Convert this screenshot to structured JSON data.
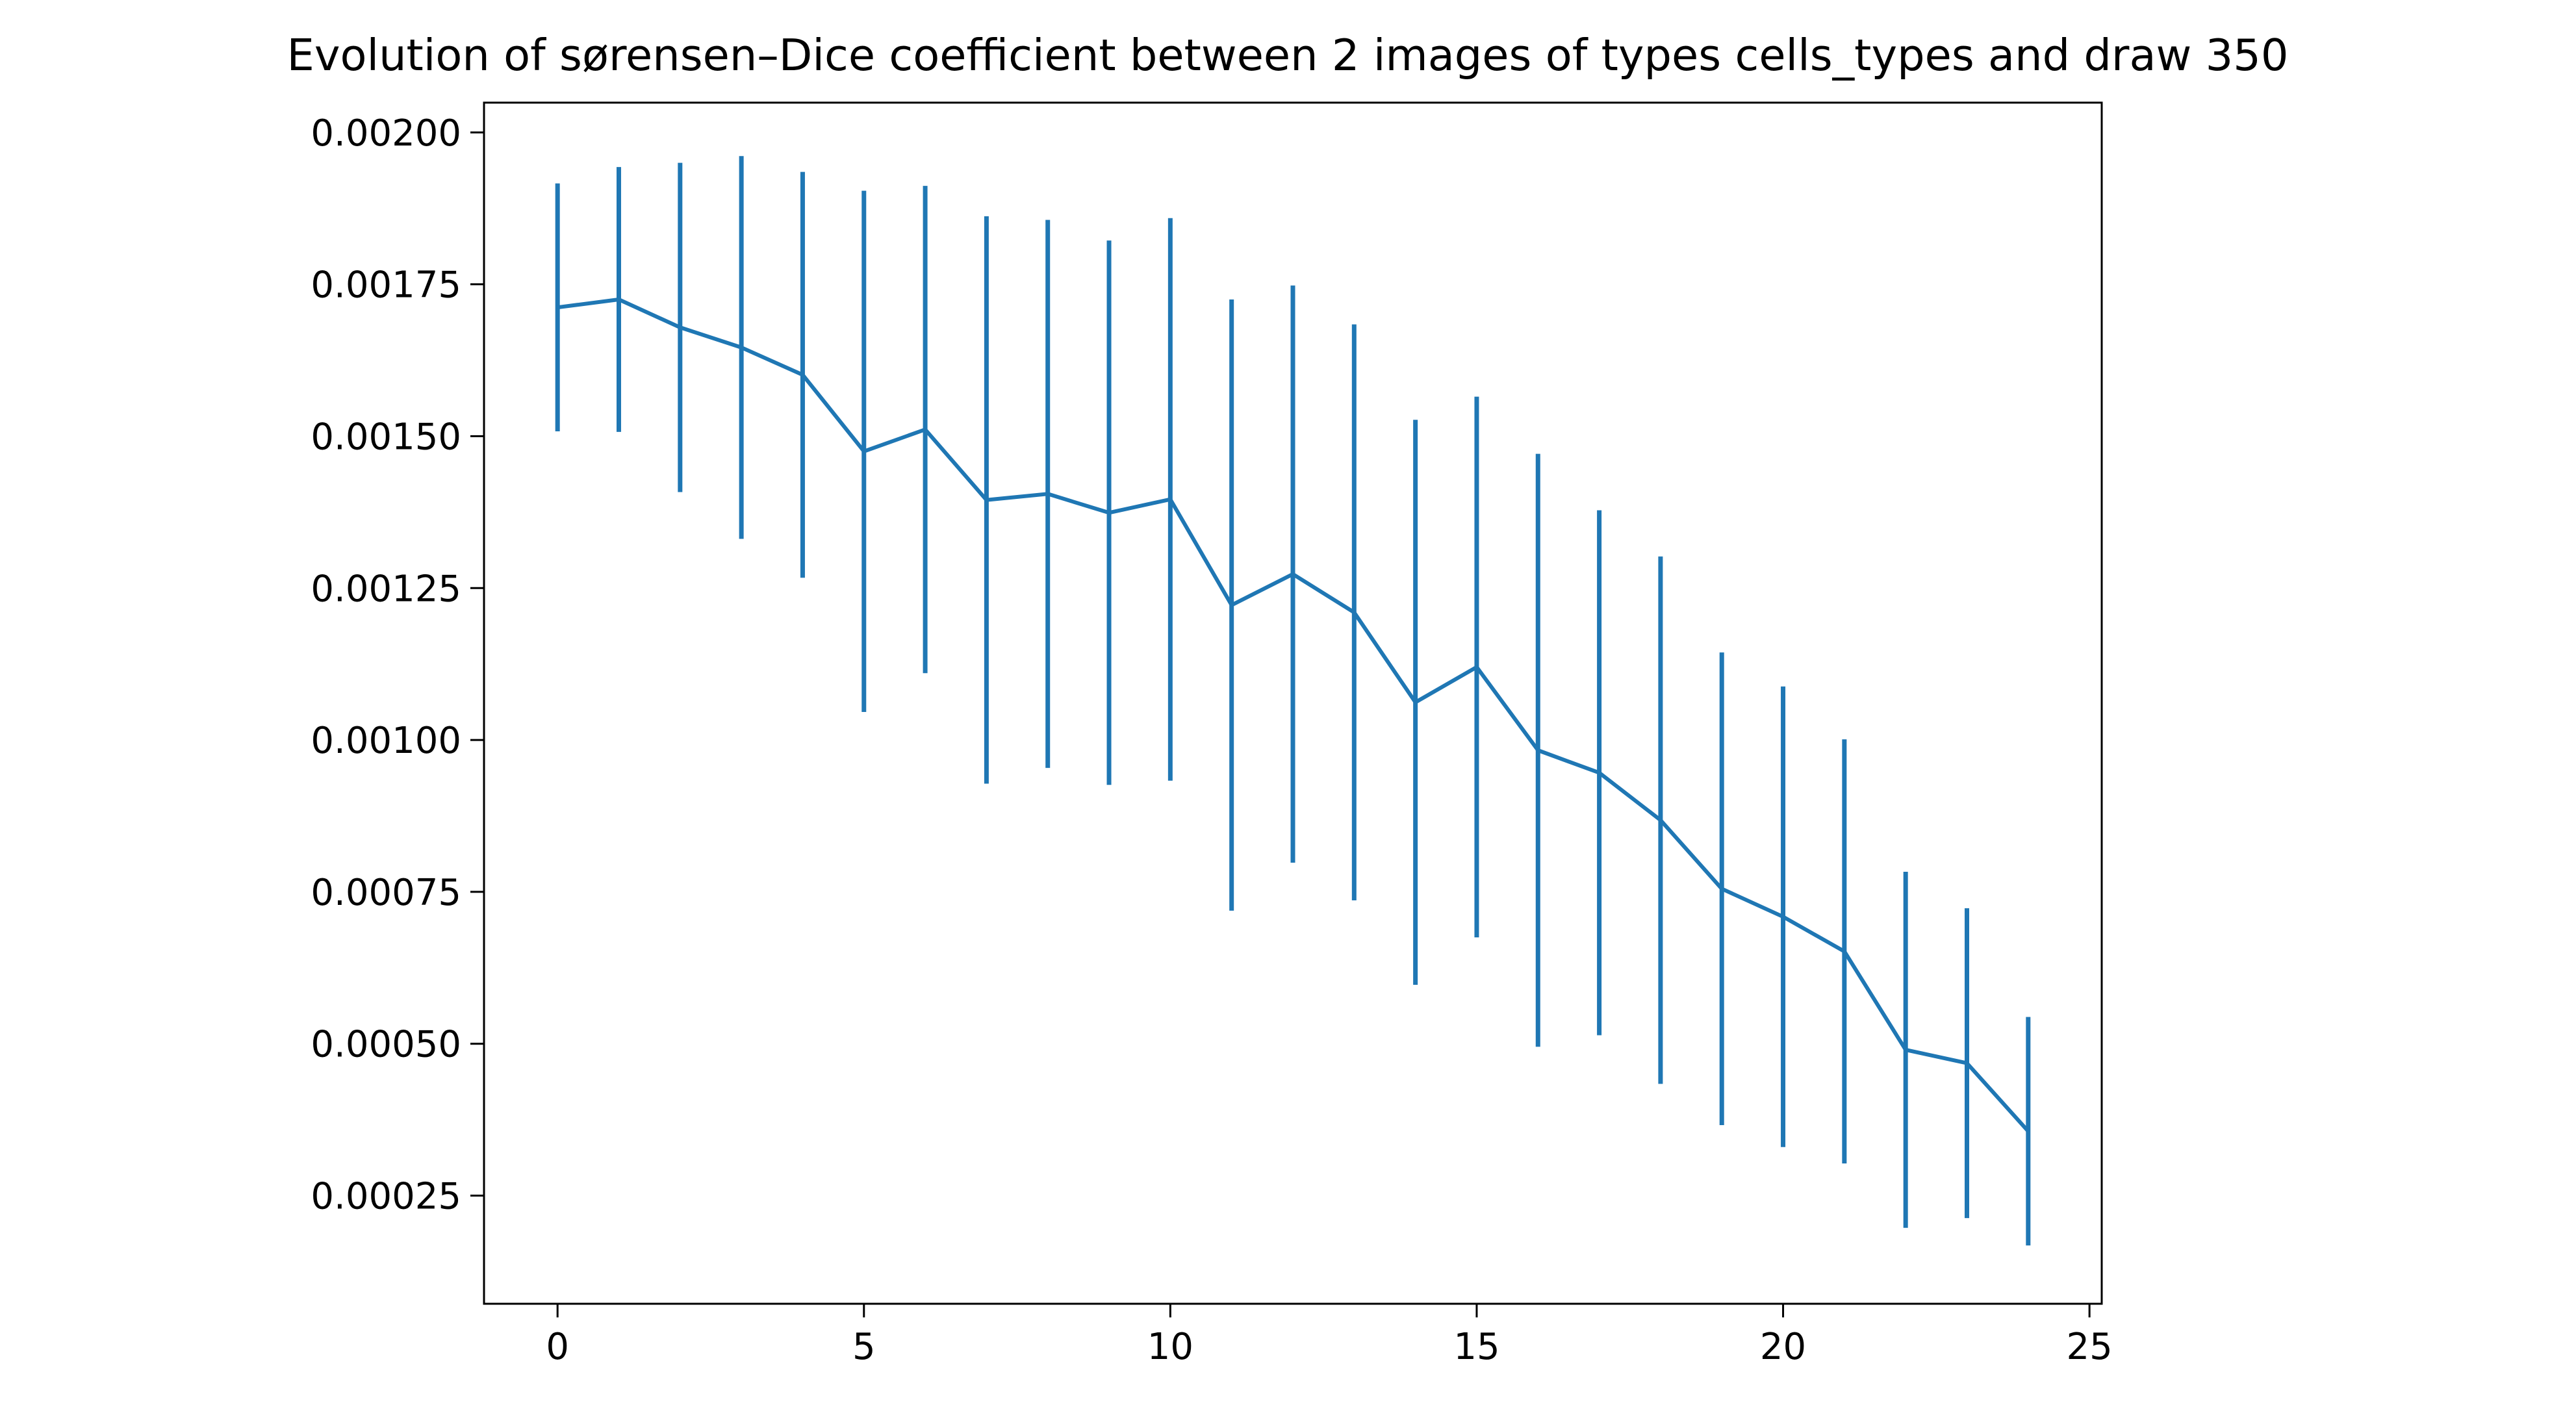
{
  "chart_data": {
    "type": "line",
    "title": "Evolution of sørensen–Dice coefficient  between 2 images of types cells_types and draw 350",
    "xlabel": "",
    "ylabel": "",
    "xlim": [
      -1.2,
      25.2
    ],
    "ylim": [
      7.2e-05,
      0.002049
    ],
    "x_ticks": [
      0,
      5,
      10,
      15,
      20,
      25
    ],
    "x_tick_labels": [
      "0",
      "5",
      "10",
      "15",
      "20",
      "25"
    ],
    "y_ticks": [
      0.00025,
      0.0005,
      0.00075,
      0.001,
      0.00125,
      0.0015,
      0.00175,
      0.002
    ],
    "y_tick_labels": [
      "0.00025",
      "0.00050",
      "0.00075",
      "0.00100",
      "0.00125",
      "0.00150",
      "0.00175",
      "0.00200"
    ],
    "grid": false,
    "legend": "none",
    "series": [
      {
        "color": "#1f77b4",
        "x": [
          0,
          1,
          2,
          3,
          4,
          5,
          6,
          7,
          8,
          9,
          10,
          11,
          12,
          13,
          14,
          15,
          16,
          17,
          18,
          19,
          20,
          21,
          22,
          23,
          24
        ],
        "y": [
          0.001712,
          0.001725,
          0.001679,
          0.001646,
          0.001601,
          0.001475,
          0.001511,
          0.001395,
          0.001405,
          0.001374,
          0.001396,
          0.001222,
          0.001273,
          0.00121,
          0.001062,
          0.00112,
          0.000983,
          0.000946,
          0.000868,
          0.000755,
          0.000709,
          0.000652,
          0.00049,
          0.000468,
          0.000356
        ],
        "yerr": [
          0.000204,
          0.000218,
          0.000271,
          0.000315,
          0.000334,
          0.000429,
          0.000401,
          0.000467,
          0.000451,
          0.000448,
          0.000463,
          0.000503,
          0.000475,
          0.000474,
          0.000465,
          0.000445,
          0.000488,
          0.000432,
          0.000434,
          0.000389,
          0.000379,
          0.000349,
          0.000293,
          0.000255,
          0.000188
        ]
      }
    ]
  }
}
